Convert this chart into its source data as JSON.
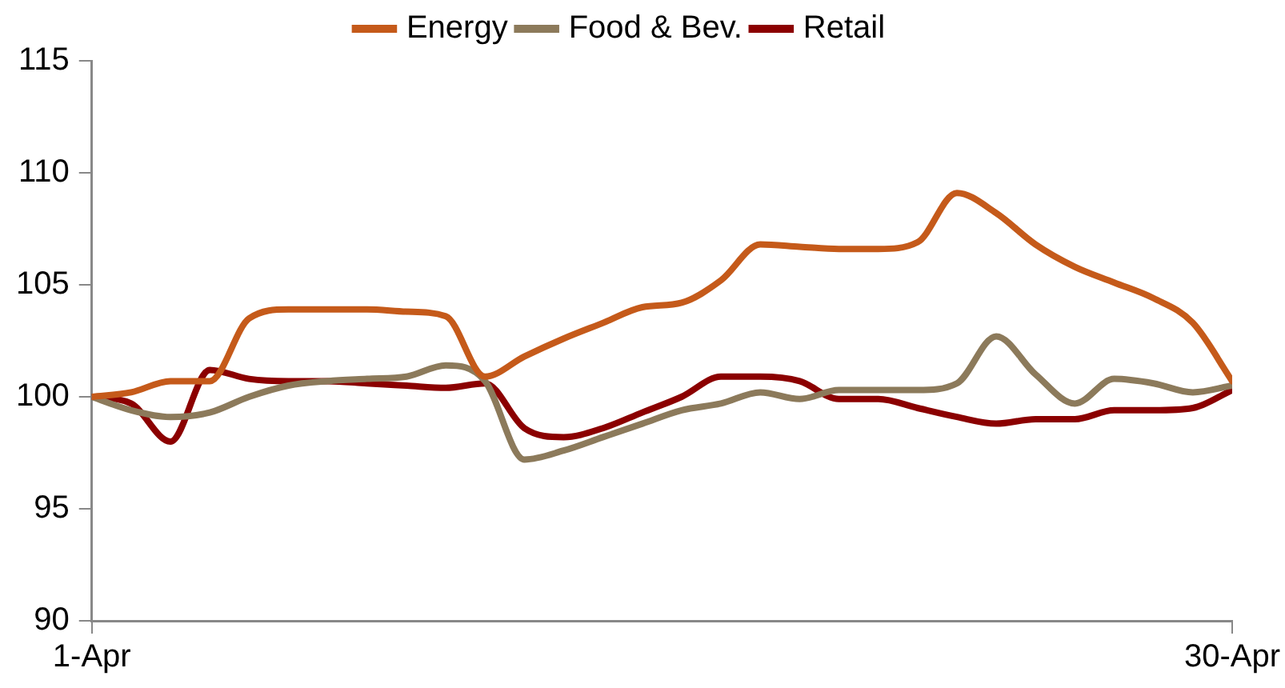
{
  "chart_data": {
    "type": "line",
    "x": [
      "--04-01",
      "--04-02",
      "--04-03",
      "--04-04",
      "--04-05",
      "--04-06",
      "--04-07",
      "--04-08",
      "--04-09",
      "--04-10",
      "--04-11",
      "--04-12",
      "--04-13",
      "--04-14",
      "--04-15",
      "--04-16",
      "--04-17",
      "--04-18",
      "--04-19",
      "--04-20",
      "--04-21",
      "--04-22",
      "--04-23",
      "--04-24",
      "--04-25",
      "--04-26",
      "--04-27",
      "--04-28",
      "--04-29",
      "--04-30"
    ],
    "series": [
      {
        "name": "Energy",
        "color": "#c55a1a",
        "values": [
          100,
          100.2,
          100.7,
          100.7,
          103.5,
          103.9,
          103.9,
          103.9,
          103.8,
          103.6,
          100.9,
          101.8,
          102.6,
          103.3,
          104.0,
          104.2,
          105.2,
          106.8,
          106.7,
          106.6,
          106.6,
          106.9,
          109.1,
          108.2,
          106.8,
          105.8,
          105.1,
          104.4,
          103.3,
          100.7
        ]
      },
      {
        "name": "Food & Bev.",
        "color": "#8c7a5b",
        "values": [
          100,
          99.4,
          99.1,
          99.3,
          100,
          100.5,
          100.7,
          100.8,
          100.9,
          101.4,
          100.7,
          97.2,
          97.6,
          98.2,
          98.8,
          99.4,
          99.7,
          100.2,
          99.9,
          100.3,
          100.3,
          100.3,
          100.6,
          102.7,
          101.0,
          99.7,
          100.8,
          100.6,
          100.2,
          100.5
        ]
      },
      {
        "name": "Retail",
        "color": "#8b0000",
        "values": [
          100,
          99.7,
          98.0,
          101.2,
          100.8,
          100.7,
          100.7,
          100.6,
          100.5,
          100.4,
          100.6,
          98.6,
          98.2,
          98.6,
          99.3,
          100.0,
          100.9,
          100.9,
          100.7,
          99.9,
          99.9,
          99.5,
          99.1,
          98.8,
          99.0,
          99.0,
          99.4,
          99.4,
          99.5,
          100.3
        ]
      }
    ],
    "xlim": [
      "--04-01",
      "--04-30"
    ],
    "xticks": [
      {
        "value": "--04-01",
        "label": "1-Apr"
      },
      {
        "value": "--04-30",
        "label": "30-Apr"
      }
    ],
    "ylim": [
      90,
      115
    ],
    "yticks": [
      90,
      95,
      100,
      105,
      110,
      115
    ],
    "grid": false,
    "legend": "top",
    "marker": "none",
    "line_style": "solid"
  }
}
